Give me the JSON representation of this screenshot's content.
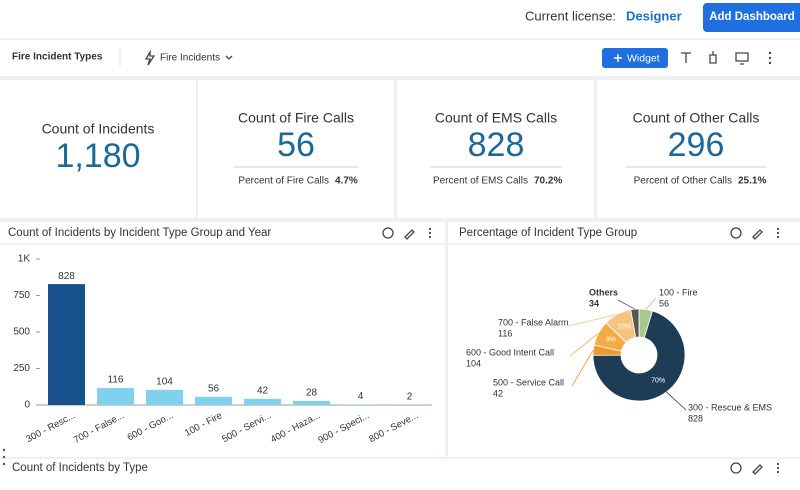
{
  "topbar": {
    "license_label": "Current license:",
    "license": "Designer",
    "add_button": "Add Dashboard"
  },
  "toolbar": {
    "dashboard_title": "Fire Incident Types",
    "datasource": "Fire Incidents",
    "widget_button": "Widget"
  },
  "kpis": [
    {
      "title": "Count of Incidents",
      "value": "1,180"
    },
    {
      "title": "Count of Fire Calls",
      "value": "56",
      "sub_label": "Percent of Fire Calls",
      "sub_value": "4.7%"
    },
    {
      "title": "Count of EMS Calls",
      "value": "828",
      "sub_label": "Percent of EMS Calls",
      "sub_value": "70.2%"
    },
    {
      "title": "Count of Other Calls",
      "value": "296",
      "sub_label": "Percent of Other Calls",
      "sub_value": "25.1%"
    }
  ],
  "bar_widget": {
    "title": "Count of Incidents by Incident Type Group and Year",
    "chart_data": {
      "type": "bar",
      "categories": [
        "300 - Resc...",
        "700 - False...",
        "600 - Goo...",
        "100 - Fire",
        "500 - Servi...",
        "400 - Haza...",
        "900 - Speci...",
        "800 - Seve..."
      ],
      "values": [
        828,
        116,
        104,
        56,
        42,
        28,
        4,
        2
      ],
      "colors": [
        "#17508c",
        "#7fd1ee",
        "#7fd1ee",
        "#7fd1ee",
        "#7fd1ee",
        "#7fd1ee",
        "#7fd1ee",
        "#7fd1ee"
      ],
      "ylim": [
        0,
        1000
      ],
      "yticks": [
        0,
        250,
        500,
        750,
        {
          "value": 1000,
          "label": "1K"
        }
      ]
    }
  },
  "pie_widget": {
    "title": "Percentage of Incident Type Group",
    "chart_data": {
      "type": "donut",
      "categories": [
        "100 - Fire",
        "300 - Rescue & EMS",
        "500 - Service Call",
        "600 - Good Intent Call",
        "700 - False Alarm",
        "Others"
      ],
      "values": [
        56,
        828,
        42,
        104,
        116,
        34
      ],
      "colors": [
        "#a9c98a",
        "#1c3d55",
        "#ee9a2c",
        "#f3ac45",
        "#f6c47c",
        "#555555"
      ],
      "percent_labels": [
        null,
        "70%",
        null,
        "9%",
        "10%",
        null
      ]
    }
  },
  "bottom_widget": {
    "title": "Count of Incidents by Type"
  }
}
